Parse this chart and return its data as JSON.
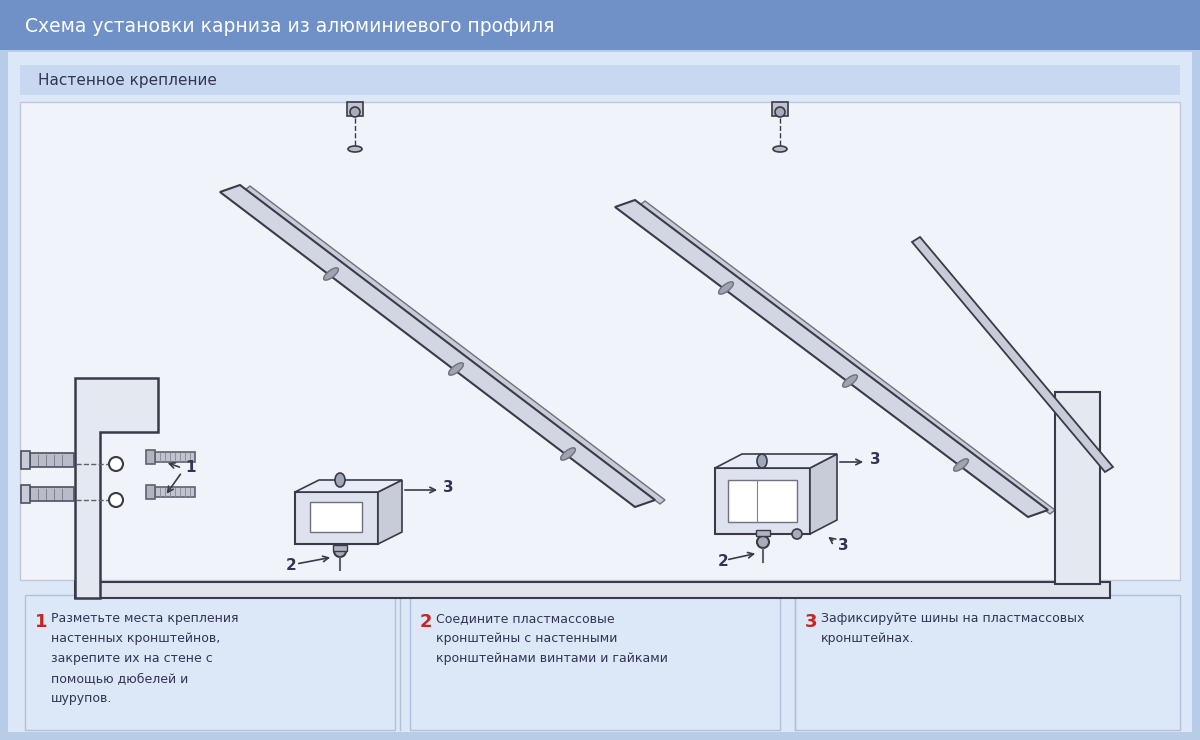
{
  "title": "Схема установки карниза из алюминиевого профиля",
  "subtitle": "Настенное крепление",
  "title_bg": "#7090c8",
  "subtitle_bg": "#c8d8f0",
  "main_bg": "#dce8f8",
  "outer_bg": "#b8cce8",
  "diagram_bg": "#f0f4fa",
  "diagram_border": "#c0c8d8",
  "step_bg": "#dce8f8",
  "step_border": "#b0c0d8",
  "step_number_color": "#cc2222",
  "step_text_color": "#333355",
  "title_text_color": "#ffffff",
  "subtitle_text_color": "#333355",
  "steps": [
    {
      "number": "1",
      "text": "Разметьте места крепления\nнастенных кронштейнов,\nзакрепите их на стене с\nпомощью дюбелей и\nшурупов."
    },
    {
      "number": "2",
      "text": "Соедините пластмассовые\nкронштейны с настенными\nкронштейнами винтами и гайками"
    },
    {
      "number": "3",
      "text": "Зафиксируйте шины на пластмассовых\nкронштейнах."
    }
  ],
  "figsize": [
    12.0,
    7.4
  ],
  "dpi": 100
}
